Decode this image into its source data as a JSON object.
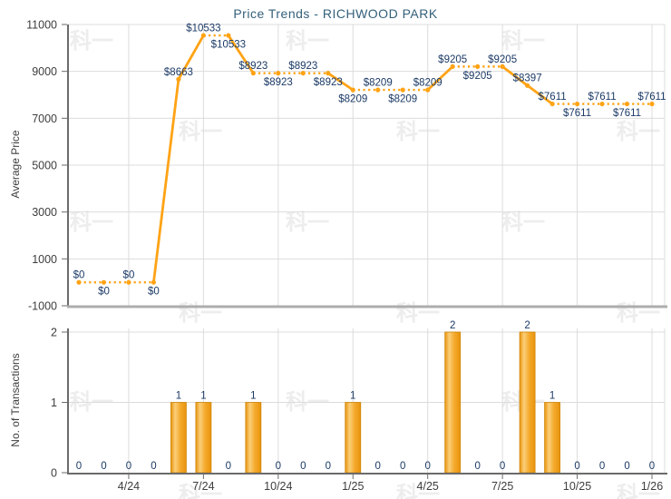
{
  "title": "Price Trends - RICHWOOD PARK",
  "watermark": {
    "text": "科一"
  },
  "colors": {
    "line": "#FFA315",
    "marker": "#FFA315",
    "data_label": "#1B3A66",
    "title": "#33607A",
    "tick_label": "#3D3D3D",
    "grid": "#DCDCDC",
    "axis": "#6B6B6B",
    "top_chart_baseline": "#ADADAD",
    "bar_edge": "#E8940E",
    "bar_highlight": "#FBCF79",
    "bar_mid": "#F4A92B",
    "bar_border": "#CE8508"
  },
  "chart_data": [
    {
      "type": "line",
      "title": "Price Trends - RICHWOOD PARK",
      "xlabel": "",
      "ylabel": "Average Price",
      "ylim": [
        -1000,
        11000
      ],
      "yticks": [
        -1000,
        1000,
        3000,
        5000,
        7000,
        9000,
        11000
      ],
      "x": [
        "2/24",
        "3/24",
        "4/24",
        "5/24",
        "6/24",
        "7/24",
        "8/24",
        "9/24",
        "10/24",
        "11/24",
        "12/24",
        "1/25",
        "2/25",
        "3/25",
        "4/25",
        "5/25",
        "6/25",
        "7/25",
        "8/25",
        "9/25",
        "10/25",
        "11/25",
        "12/25",
        "1/26"
      ],
      "xticks": [
        "4/24",
        "7/24",
        "10/24",
        "1/25",
        "4/25",
        "7/25",
        "10/25",
        "1/26"
      ],
      "values": [
        0,
        0,
        0,
        0,
        8663,
        10533,
        10533,
        8923,
        8923,
        8923,
        8923,
        8209,
        8209,
        8209,
        8209,
        9205,
        9205,
        9205,
        8397,
        7611,
        7611,
        7611,
        7611,
        7611
      ],
      "point_labels": [
        "$0",
        "$0",
        "$0",
        "$0",
        "$8663",
        "$10533",
        "$10533",
        "$8923",
        "$8923",
        "$8923",
        "$8923",
        "$8209",
        "$8209",
        "$8209",
        "$8209",
        "$9205",
        "$9205",
        "$9205",
        "$8397",
        "$7611",
        "$7611",
        "$7611",
        "$7611",
        "$7611"
      ],
      "label_side": [
        "above",
        "below",
        "above",
        "below",
        "above",
        "above",
        "below",
        "above",
        "below",
        "above",
        "below",
        "below",
        "above",
        "below",
        "above",
        "above",
        "below",
        "above",
        "above",
        "above",
        "below",
        "above",
        "below",
        "above"
      ],
      "line_style_note": "solid segment when value changes, dotted segment when value repeats",
      "grid": true,
      "legend": "none"
    },
    {
      "type": "bar",
      "title": "",
      "xlabel": "",
      "ylabel": "No. of Transactions",
      "ylim": [
        0,
        2
      ],
      "yticks": [
        0,
        1,
        2
      ],
      "categories": [
        "2/24",
        "3/24",
        "4/24",
        "5/24",
        "6/24",
        "7/24",
        "8/24",
        "9/24",
        "10/24",
        "11/24",
        "12/24",
        "1/25",
        "2/25",
        "3/25",
        "4/25",
        "5/25",
        "6/25",
        "7/25",
        "8/25",
        "9/25",
        "10/25",
        "11/25",
        "12/25",
        "1/26"
      ],
      "xticks": [
        "4/24",
        "7/24",
        "10/24",
        "1/25",
        "4/25",
        "7/25",
        "10/25",
        "1/26"
      ],
      "values": [
        0,
        0,
        0,
        0,
        1,
        1,
        0,
        1,
        0,
        0,
        0,
        1,
        0,
        0,
        0,
        2,
        0,
        0,
        2,
        1,
        0,
        0,
        0,
        0
      ],
      "grid": true,
      "legend": "none"
    }
  ]
}
